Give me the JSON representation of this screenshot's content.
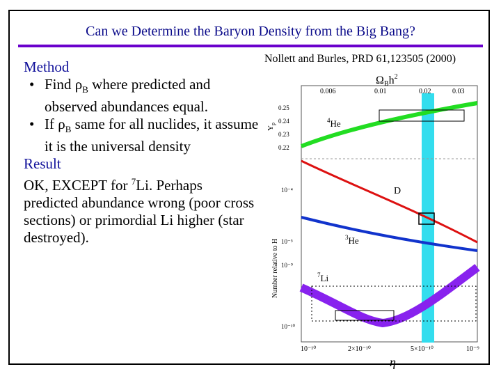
{
  "slide": {
    "title": "Can we Determine the Baryon Density from the Big Bang?",
    "method_heading": "Method",
    "bullets": [
      {
        "text_before": "Find ",
        "rho": "ρ",
        "sub": "B",
        "text_after": " where predicted and observed abundances equal."
      },
      {
        "text_before": "If ",
        "rho": "ρ",
        "sub": "B",
        "text_after": " same for all nuclides, it assume it is the universal density"
      }
    ],
    "result_heading": "Result",
    "result_text_1": "OK, EXCEPT for ",
    "result_sup": "7",
    "result_text_2": "Li.  Perhaps predicted abundance wrong (poor cross sections) or primordial Li higher (star destroyed).",
    "citation": "Nollett and Burles, PRD 61,123505 (2000)"
  },
  "figure": {
    "top_axis_label": "Ω",
    "top_axis_sub": "B",
    "top_axis_h": "h",
    "top_axis_sup": "2",
    "top_ticks": [
      "0.006",
      "0.01",
      "0.02",
      "0.03"
    ],
    "yp_label": "Y",
    "yp_sub": "p",
    "yp_ticks": [
      "0.25",
      "0.24",
      "0.23",
      "0.22"
    ],
    "y_axis_label": "Number relative to H",
    "y_ticks": [
      "10⁻⁴",
      "10⁻⁵",
      "10⁻⁹",
      "10⁻¹⁰"
    ],
    "x_ticks": [
      "10⁻¹⁰",
      "2×10⁻¹⁰",
      "5×10⁻¹⁰",
      "10⁻⁹"
    ],
    "x_label": "η",
    "curve_labels": {
      "he4": "He",
      "he4_sup": "4",
      "d": "D",
      "he3": "He",
      "he3_sup": "3",
      "li7": "Li",
      "li7_sup": "7"
    },
    "colors": {
      "he4": "#22dd22",
      "d": "#dd1111",
      "he3": "#1133cc",
      "li7": "#8822ee",
      "band": "#33ddee"
    }
  }
}
